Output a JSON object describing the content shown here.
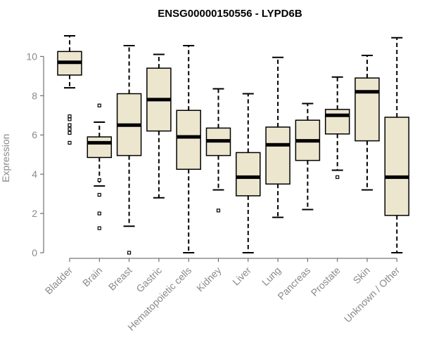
{
  "chart_data": {
    "type": "boxplot",
    "title": "ENSG00000150556 - LYPD6B",
    "xlabel": "",
    "ylabel": "Expression",
    "ylim": [
      0,
      11.3
    ],
    "yticks": [
      0,
      2,
      4,
      6,
      8,
      10
    ],
    "box_fill": "#ede6cf",
    "box_stroke": "#000000",
    "categories": [
      "Bladder",
      "Brain",
      "Breast",
      "Gastric",
      "Hematopoietic cells",
      "Kidney",
      "Liver",
      "Lung",
      "Pancreas",
      "Prostate",
      "Skin",
      "Unknown / Other"
    ],
    "boxes": [
      {
        "min": 8.4,
        "q1": 9.05,
        "median": 9.7,
        "q3": 10.25,
        "max": 11.05,
        "outliers": [
          5.6,
          6.1,
          6.3,
          6.5,
          6.8,
          6.95
        ]
      },
      {
        "min": 3.4,
        "q1": 4.85,
        "median": 5.6,
        "q3": 5.9,
        "max": 6.65,
        "outliers": [
          1.25,
          2.0,
          2.95,
          3.7,
          7.5
        ]
      },
      {
        "min": 1.35,
        "q1": 4.95,
        "median": 6.5,
        "q3": 8.1,
        "max": 10.55,
        "outliers": [
          0.0
        ]
      },
      {
        "min": 2.8,
        "q1": 6.2,
        "median": 7.8,
        "q3": 9.4,
        "max": 10.1,
        "outliers": []
      },
      {
        "min": 0.0,
        "q1": 4.25,
        "median": 5.9,
        "q3": 7.25,
        "max": 10.55,
        "outliers": []
      },
      {
        "min": 3.2,
        "q1": 4.95,
        "median": 5.7,
        "q3": 6.35,
        "max": 8.35,
        "outliers": [
          2.15
        ]
      },
      {
        "min": 0.0,
        "q1": 2.9,
        "median": 3.85,
        "q3": 5.1,
        "max": 8.1,
        "outliers": []
      },
      {
        "min": 1.8,
        "q1": 3.5,
        "median": 5.5,
        "q3": 6.4,
        "max": 9.95,
        "outliers": []
      },
      {
        "min": 2.2,
        "q1": 4.7,
        "median": 5.7,
        "q3": 6.75,
        "max": 7.6,
        "outliers": []
      },
      {
        "min": 4.2,
        "q1": 6.05,
        "median": 7.0,
        "q3": 7.3,
        "max": 8.95,
        "outliers": [
          3.85
        ]
      },
      {
        "min": 3.2,
        "q1": 5.7,
        "median": 8.2,
        "q3": 8.9,
        "max": 10.05,
        "outliers": []
      },
      {
        "min": 0.0,
        "q1": 1.9,
        "median": 3.85,
        "q3": 6.9,
        "max": 10.95,
        "outliers": []
      }
    ]
  }
}
